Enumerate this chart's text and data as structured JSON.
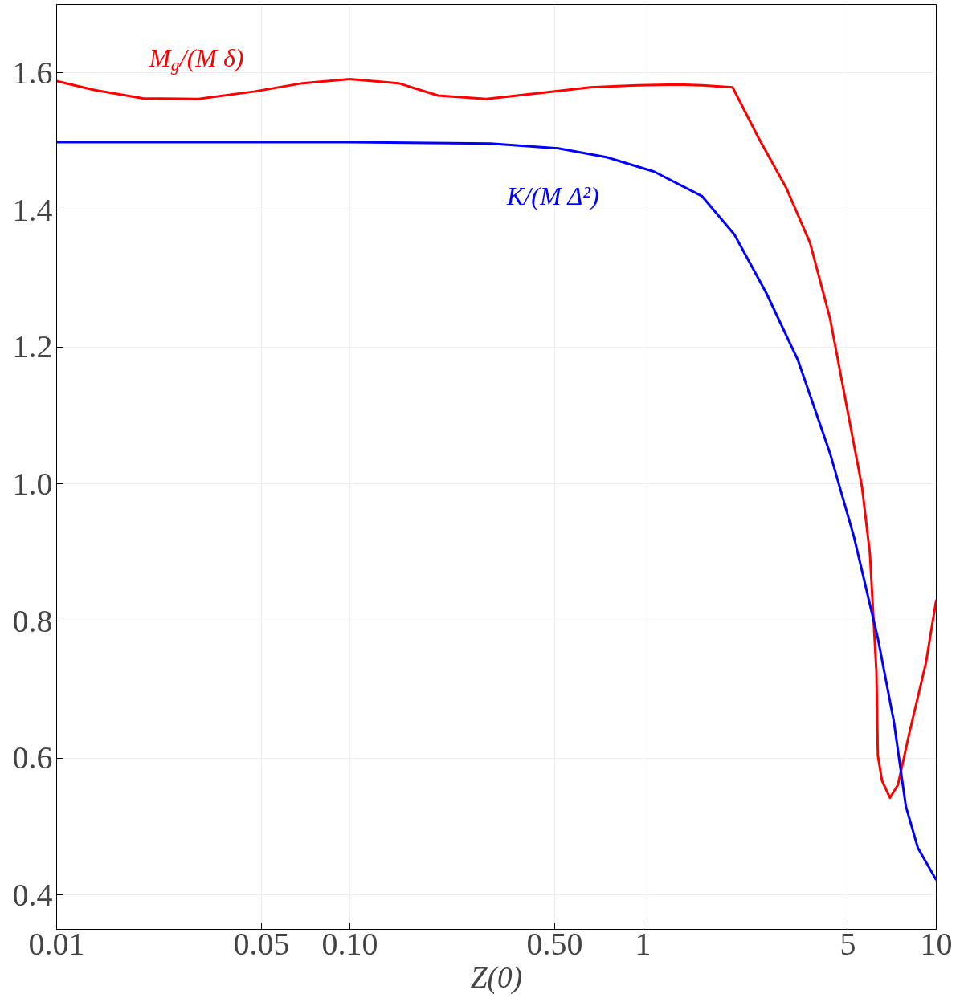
{
  "chart_data": {
    "type": "line",
    "xlabel": "Z(0)",
    "log": "x",
    "grid": true,
    "line_style": "solid",
    "marker": "none",
    "xlim": [
      0.01,
      10
    ],
    "ylim": [
      0.35,
      1.7
    ],
    "xticks": [
      {
        "value": 0.01,
        "label": "0.01"
      },
      {
        "value": 0.05,
        "label": "0.05"
      },
      {
        "value": 0.1,
        "label": "0.10"
      },
      {
        "value": 0.5,
        "label": "0.50"
      },
      1,
      5,
      10
    ],
    "yticks": [
      {
        "value": 0.4,
        "label": "0.4"
      },
      {
        "value": 0.6,
        "label": "0.6"
      },
      {
        "value": 0.8,
        "label": "0.8"
      },
      {
        "value": 1.0,
        "label": "1.0"
      },
      {
        "value": 1.2,
        "label": "1.2"
      },
      {
        "value": 1.4,
        "label": "1.4"
      },
      {
        "value": 1.6,
        "label": "1.6"
      }
    ],
    "series": [
      {
        "name": "M$_{g}$/(M δ)",
        "color": "#ff0000",
        "x": [
          0.01,
          0.0135,
          0.0197,
          0.0305,
          0.0474,
          0.069,
          0.1,
          0.1466,
          0.2,
          0.292,
          0.454,
          0.661,
          0.963,
          1.32,
          1.59,
          2.02,
          2.47,
          3.08,
          3.71,
          4.34,
          4.92,
          5.58,
          5.94,
          6.25,
          6.32,
          6.53,
          6.95,
          7.4,
          8.13,
          9.22,
          10
        ],
        "values": [
          1.588,
          1.575,
          1.563,
          1.562,
          1.573,
          1.585,
          1.591,
          1.585,
          1.567,
          1.562,
          1.571,
          1.579,
          1.582,
          1.583,
          1.582,
          1.579,
          1.506,
          1.432,
          1.352,
          1.242,
          1.119,
          0.996,
          0.898,
          0.726,
          0.604,
          0.567,
          0.542,
          0.561,
          0.64,
          0.739,
          0.831
        ]
      },
      {
        "name": "K/(M Δ²)",
        "color": "#0000ff",
        "x": [
          0.01,
          0.1,
          0.302,
          0.514,
          0.75,
          1.09,
          1.59,
          2.05,
          2.63,
          3.38,
          4.34,
          5.24,
          6.32,
          7.17,
          7.87,
          8.65,
          10
        ],
        "values": [
          1.499,
          1.499,
          1.497,
          1.49,
          1.477,
          1.456,
          1.42,
          1.364,
          1.279,
          1.18,
          1.045,
          0.923,
          0.775,
          0.653,
          0.53,
          0.469,
          0.422
        ]
      }
    ]
  }
}
